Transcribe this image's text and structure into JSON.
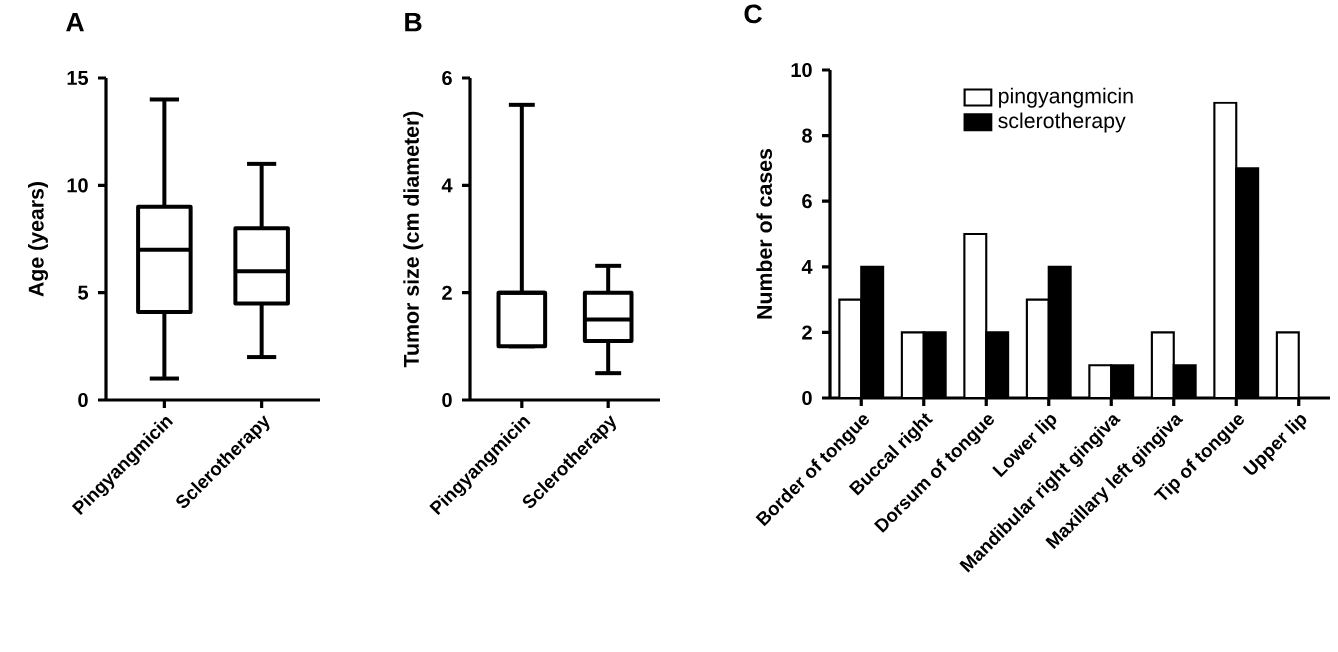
{
  "chart_data": [
    {
      "type": "box",
      "title": "A",
      "ylabel": "Age (years)",
      "categories": [
        "Pingyangmicin",
        "Sclerotherapy"
      ],
      "boxes": [
        {
          "low": 1,
          "q1": 4.1,
          "median": 7,
          "q3": 9,
          "high": 14
        },
        {
          "low": 2,
          "q1": 4.5,
          "median": 6,
          "q3": 8,
          "high": 11
        }
      ],
      "ylim": [
        0,
        15
      ],
      "yticks": [
        0,
        5,
        10,
        15
      ]
    },
    {
      "type": "box",
      "title": "B",
      "ylabel": "Tumor size (cm diameter)",
      "categories": [
        "Pingyangmicin",
        "Sclerotherapy"
      ],
      "boxes": [
        {
          "low": 1,
          "q1": 1,
          "median": 2,
          "q3": 2,
          "high": 5.5
        },
        {
          "low": 0.5,
          "q1": 1.1,
          "median": 1.5,
          "q3": 2,
          "high": 2.5
        }
      ],
      "ylim": [
        0,
        6
      ],
      "yticks": [
        0,
        2,
        4,
        6
      ]
    },
    {
      "type": "bar",
      "title": "C",
      "ylabel": "Number of cases",
      "categories": [
        "Border of tongue",
        "Buccal right",
        "Dorsum of tongue",
        "Lower lip",
        "Mandibular right gingiva",
        "Maxillary left gingiva",
        "Tip of tongue",
        "Upper lip"
      ],
      "series": [
        {
          "name": "pingyangmicin",
          "color": "#ffffff",
          "values": [
            3,
            2,
            5,
            3,
            1,
            2,
            9,
            2
          ]
        },
        {
          "name": "sclerotherapy",
          "color": "#000000",
          "values": [
            4,
            2,
            2,
            4,
            1,
            1,
            7,
            0
          ]
        }
      ],
      "ylim": [
        0,
        10
      ],
      "yticks": [
        0,
        2,
        4,
        6,
        8,
        10
      ],
      "legend": "top left"
    }
  ]
}
